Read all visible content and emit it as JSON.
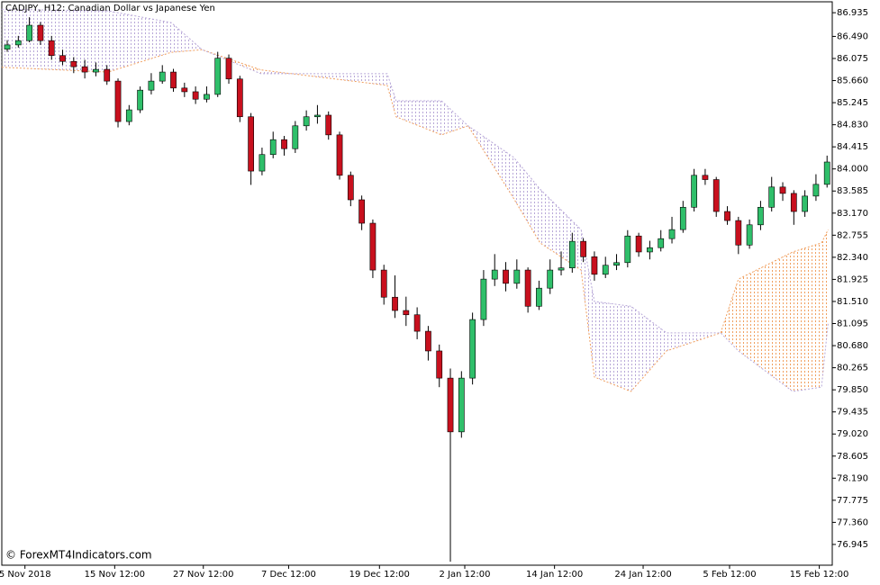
{
  "chart_data": {
    "type": "candlestick",
    "title": "CADJPY, H12:  Canadian Dollar vs Japanese Yen",
    "watermark": "© ForexMT4Indicators.com",
    "up_color": "#2fbf6a",
    "down_color": "#c8101e",
    "wick_color": "#000000",
    "open": [
      86.25,
      86.33,
      86.41,
      86.7,
      86.41,
      86.13,
      86.02,
      85.92,
      85.82,
      85.87,
      85.65,
      84.89,
      85.11,
      85.48,
      85.65,
      85.82,
      85.52,
      85.45,
      85.31,
      85.4,
      86.08,
      85.69,
      84.98,
      83.96,
      84.27,
      84.55,
      84.38,
      84.81,
      84.98,
      85.01,
      84.64,
      83.88,
      83.42,
      82.98,
      82.1,
      81.59,
      81.34,
      81.26,
      80.95,
      80.58,
      80.07,
      79.06,
      80.07,
      81.17,
      81.93,
      82.1,
      81.85,
      82.1,
      81.42,
      81.76,
      82.1,
      82.14,
      82.64,
      82.35,
      82.02,
      82.19,
      82.24,
      82.74,
      82.44,
      82.52,
      82.69,
      82.86,
      83.28,
      83.88,
      83.8,
      83.2,
      83.03,
      82.57,
      82.95,
      83.28,
      83.66,
      83.54,
      83.2,
      83.49,
      83.71
    ],
    "high": [
      86.42,
      86.5,
      86.85,
      86.76,
      86.5,
      86.24,
      86.1,
      86.05,
      86.0,
      85.95,
      85.7,
      85.2,
      85.55,
      85.8,
      85.95,
      85.88,
      85.62,
      85.55,
      85.55,
      86.2,
      86.15,
      85.75,
      85.05,
      84.4,
      84.7,
      84.62,
      84.9,
      85.1,
      85.2,
      85.08,
      84.7,
      83.95,
      83.5,
      83.05,
      82.2,
      82.0,
      81.6,
      81.4,
      81.05,
      80.7,
      80.25,
      80.2,
      81.3,
      82.1,
      82.4,
      82.25,
      82.3,
      82.15,
      81.9,
      82.3,
      82.45,
      82.8,
      82.7,
      82.45,
      82.35,
      82.4,
      82.85,
      82.8,
      82.65,
      82.85,
      83.1,
      83.4,
      84.0,
      84.0,
      83.85,
      83.3,
      83.1,
      83.05,
      83.4,
      83.85,
      83.75,
      83.6,
      83.6,
      83.9,
      84.25
    ],
    "low": [
      86.2,
      86.28,
      86.38,
      86.33,
      86.05,
      85.95,
      85.8,
      85.7,
      85.74,
      85.58,
      84.78,
      84.82,
      85.05,
      85.4,
      85.6,
      85.45,
      85.35,
      85.22,
      85.25,
      85.35,
      85.6,
      84.88,
      83.7,
      83.88,
      84.2,
      84.25,
      84.3,
      84.72,
      84.85,
      84.55,
      83.8,
      83.3,
      82.85,
      81.95,
      81.45,
      81.2,
      81.05,
      80.8,
      80.4,
      79.9,
      76.62,
      78.95,
      79.95,
      81.05,
      81.8,
      81.7,
      81.75,
      81.3,
      81.35,
      81.65,
      82.0,
      82.05,
      82.25,
      81.9,
      81.95,
      82.1,
      82.15,
      82.35,
      82.3,
      82.45,
      82.6,
      82.8,
      83.2,
      83.7,
      83.1,
      82.95,
      82.4,
      82.5,
      82.85,
      83.2,
      83.4,
      82.95,
      83.1,
      83.4,
      83.65
    ],
    "close": [
      86.33,
      86.41,
      86.7,
      86.41,
      86.13,
      86.02,
      85.92,
      85.82,
      85.87,
      85.65,
      84.89,
      85.11,
      85.48,
      85.65,
      85.82,
      85.52,
      85.45,
      85.31,
      85.4,
      86.08,
      85.69,
      84.98,
      83.96,
      84.27,
      84.55,
      84.38,
      84.81,
      84.98,
      85.01,
      84.64,
      83.88,
      83.42,
      82.98,
      82.1,
      81.59,
      81.34,
      81.26,
      80.95,
      80.58,
      80.07,
      79.06,
      80.07,
      81.17,
      81.93,
      82.1,
      81.85,
      82.1,
      81.42,
      81.76,
      82.1,
      82.14,
      82.64,
      82.35,
      82.02,
      82.19,
      82.24,
      82.74,
      82.44,
      82.52,
      82.69,
      82.86,
      83.28,
      83.88,
      83.8,
      83.2,
      83.03,
      82.57,
      82.95,
      83.28,
      83.66,
      83.54,
      83.2,
      83.49,
      83.71,
      84.13
    ],
    "cloud": {
      "x": [
        -0.5,
        9.1,
        14.8,
        17.6,
        22.9,
        34.3,
        35.1,
        39.2,
        41.6,
        45.7,
        48.1,
        51.8,
        53,
        56.3,
        59.5,
        64.4,
        66,
        70.9,
        73.5,
        74.1
      ],
      "series": [
        {
          "color": "#f0a060",
          "values": [
            85.91,
            85.82,
            86.19,
            86.24,
            85.86,
            85.57,
            84.98,
            84.64,
            84.81,
            83.45,
            82.61,
            82.1,
            80.09,
            79.82,
            80.58,
            80.92,
            81.93,
            82.44,
            82.61,
            82.86
          ]
        },
        {
          "color": "#b8a8d8",
          "values": [
            87.0,
            86.97,
            86.75,
            86.24,
            85.79,
            85.79,
            85.28,
            85.28,
            84.81,
            84.22,
            83.62,
            82.86,
            81.51,
            81.42,
            80.92,
            80.92,
            80.58,
            79.82,
            79.9,
            81.12
          ]
        }
      ]
    },
    "xlim": [
      -0.49,
      74.47
    ],
    "xticks": [
      {
        "value": 1.6,
        "label": "5 Nov 2018"
      },
      {
        "value": 9.7,
        "label": "15 Nov 12:00"
      },
      {
        "value": 17.7,
        "label": "27 Nov 12:00"
      },
      {
        "value": 25.4,
        "label": "7 Dec 12:00"
      },
      {
        "value": 33.6,
        "label": "19 Dec 12:00"
      },
      {
        "value": 41.3,
        "label": "2 Jan 12:00"
      },
      {
        "value": 49.4,
        "label": "14 Jan 12:00"
      },
      {
        "value": 57.4,
        "label": "24 Jan 12:00"
      },
      {
        "value": 65.2,
        "label": "5 Feb 12:00"
      },
      {
        "value": 73.3,
        "label": "15 Feb 12:00"
      }
    ],
    "ylim": [
      76.555,
      87.14
    ],
    "yticks": [
      86.935,
      {
        "value": 86.49,
        "label": "86.490"
      },
      86.075,
      {
        "value": 85.66,
        "label": "85.660"
      },
      85.245,
      {
        "value": 84.83,
        "label": "84.830"
      },
      84.415,
      {
        "value": 84,
        "label": "84.000"
      },
      83.585,
      {
        "value": 83.17,
        "label": "83.170"
      },
      82.755,
      {
        "value": 82.34,
        "label": "82.340"
      },
      81.925,
      {
        "value": 81.51,
        "label": "81.510"
      },
      81.095,
      {
        "value": 80.68,
        "label": "80.680"
      },
      80.265,
      {
        "value": 79.85,
        "label": "79.850"
      },
      79.435,
      {
        "value": 79.02,
        "label": "79.020"
      },
      78.605,
      {
        "value": 78.19,
        "label": "78.190"
      },
      77.775,
      {
        "value": 77.36,
        "label": "77.360"
      },
      76.945
    ]
  }
}
